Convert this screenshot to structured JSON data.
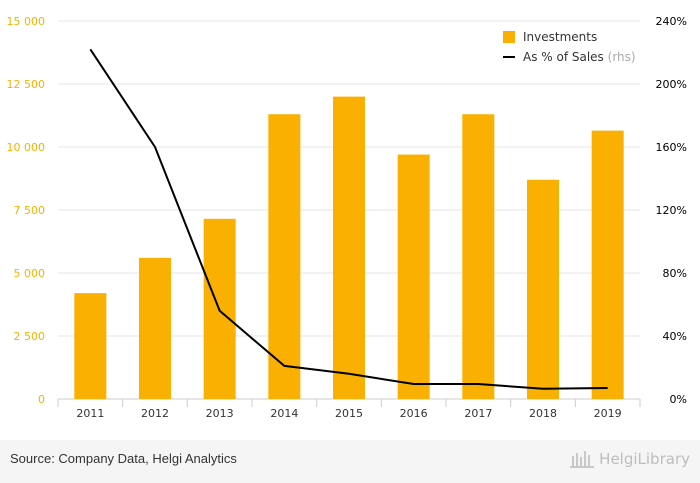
{
  "chart_data": {
    "type": "bar",
    "categories": [
      "2011",
      "2012",
      "2013",
      "2014",
      "2015",
      "2016",
      "2017",
      "2018",
      "2019"
    ],
    "series": [
      {
        "name": "Investments",
        "type": "bar",
        "axis": "left",
        "color": "#f9b000",
        "values": [
          4200,
          5600,
          7150,
          11300,
          12000,
          9700,
          11300,
          8700,
          10650
        ]
      },
      {
        "name": "As % of Sales",
        "axis_note": "(rhs)",
        "type": "line",
        "axis": "right",
        "color": "#000000",
        "values": [
          222,
          160,
          56,
          21,
          16,
          9.5,
          9.5,
          6.5,
          7
        ]
      }
    ],
    "left_axis": {
      "min": 0,
      "max": 15000,
      "ticks": [
        "0",
        "2 500",
        "5 000",
        "7 500",
        "10 000",
        "12 500",
        "15 000"
      ],
      "tick_values": [
        0,
        2500,
        5000,
        7500,
        10000,
        12500,
        15000
      ],
      "color": "#f9b000"
    },
    "right_axis": {
      "min": 0,
      "max": 240,
      "ticks": [
        "0%",
        "40%",
        "80%",
        "120%",
        "160%",
        "200%",
        "240%"
      ],
      "tick_values": [
        0,
        40,
        80,
        120,
        160,
        200,
        240
      ],
      "color": "#000000"
    },
    "grid": true,
    "legend_position": "top-right"
  },
  "footer": {
    "source": "Source: Company Data, Helgi Analytics",
    "brand": "HelgiLibrary",
    "brand_icon": "library-icon"
  }
}
